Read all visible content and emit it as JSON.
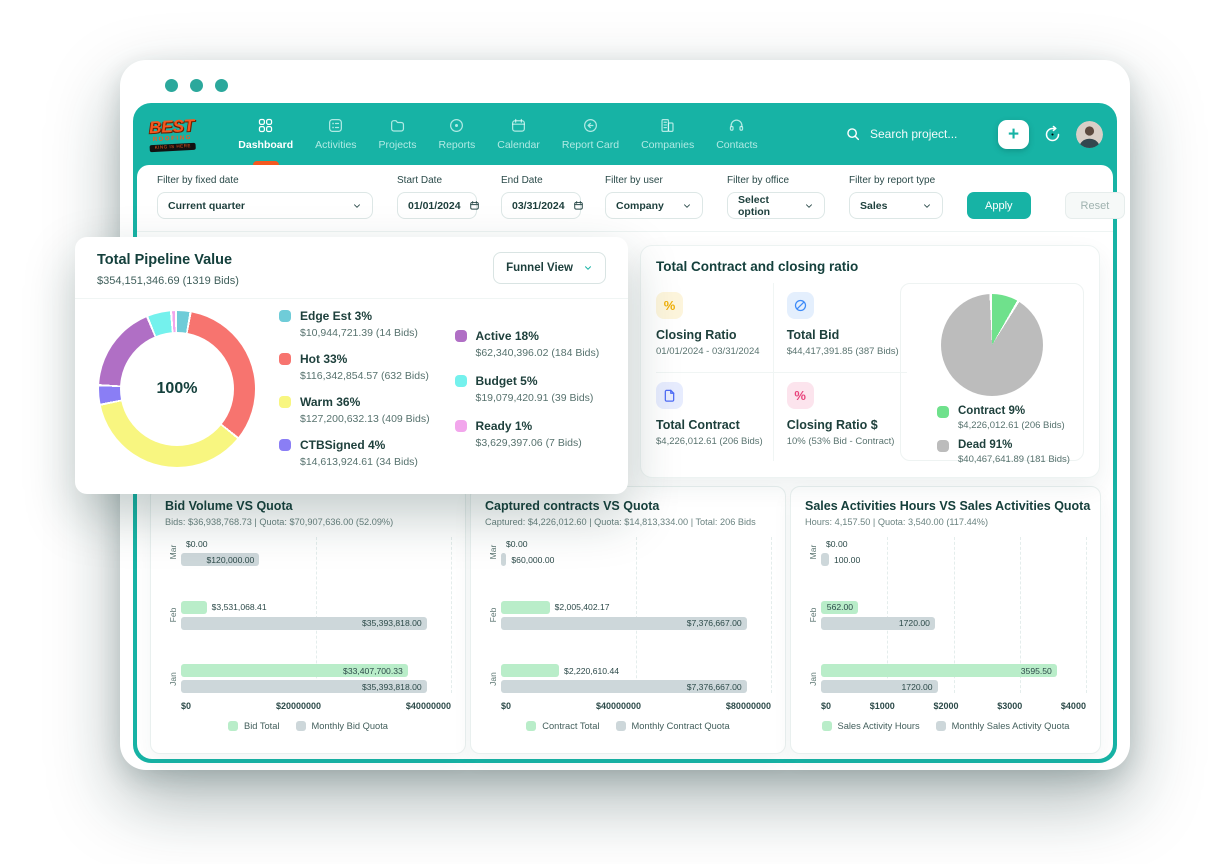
{
  "window": {
    "search_placeholder": "Search project...",
    "plus_label": "+"
  },
  "brand": {
    "line1": "BEST",
    "line2": "ROOFING",
    "line3": "KING IS HERE"
  },
  "nav": {
    "items": [
      {
        "label": "Dashboard",
        "icon": "grid",
        "active": true
      },
      {
        "label": "Activities",
        "icon": "activity",
        "active": false
      },
      {
        "label": "Projects",
        "icon": "folder",
        "active": false
      },
      {
        "label": "Reports",
        "icon": "target",
        "active": false
      },
      {
        "label": "Calendar",
        "icon": "calendar",
        "active": false
      },
      {
        "label": "Report Card",
        "icon": "badge",
        "active": false
      },
      {
        "label": "Companies",
        "icon": "building",
        "active": false
      },
      {
        "label": "Contacts",
        "icon": "headset",
        "active": false
      }
    ]
  },
  "filters": {
    "fixed_date": {
      "label": "Filter by fixed date",
      "value": "Current quarter"
    },
    "start_date": {
      "label": "Start Date",
      "value": "01/01/2024"
    },
    "end_date": {
      "label": "End Date",
      "value": "03/31/2024"
    },
    "user": {
      "label": "Filter by user",
      "value": "Company"
    },
    "office": {
      "label": "Filter by office",
      "value": "Select option"
    },
    "report_type": {
      "label": "Filter by report type",
      "value": "Sales"
    },
    "apply_label": "Apply",
    "reset_label": "Reset"
  },
  "pipeline_card": {
    "title": "Total Pipeline Value",
    "subtitle": "$354,151,346.69 (1319 Bids)",
    "view_option": "Funnel View"
  },
  "contract_card": {
    "title": "Total Contract and closing ratio",
    "stats": [
      {
        "icon": "percent",
        "color": "#efb008",
        "bg": "#fdf5dc",
        "label": "Closing Ratio",
        "value": "01/01/2024 - 03/31/2024"
      },
      {
        "icon": "slash-circle",
        "color": "#3d8bf8",
        "bg": "#e4effd",
        "label": "Total Bid",
        "value": "$44,417,391.85 (387 Bids)"
      },
      {
        "icon": "file",
        "color": "#4d6bf6",
        "bg": "#e7ecfe",
        "label": "Total Contract",
        "value": "$4,226,012.61 (206 Bids)"
      },
      {
        "icon": "percent",
        "color": "#e8447c",
        "bg": "#fce4ed",
        "label": "Closing Ratio $",
        "value": "10% (53% Bid - Contract)"
      }
    ]
  },
  "chart_data": [
    {
      "id": "pipeline-donut",
      "type": "pie",
      "variant": "donut",
      "title": "Total Pipeline Value",
      "center_label": "100%",
      "legend_split": 4,
      "slices": [
        {
          "label": "Edge Est 3%",
          "pct": 3,
          "value": "$10,944,721.39 (14 Bids)",
          "color": "#6fccd8"
        },
        {
          "label": "Hot 33%",
          "pct": 33,
          "value": "$116,342,854.57 (632 Bids)",
          "color": "#f7746f"
        },
        {
          "label": "Warm 36%",
          "pct": 36,
          "value": "$127,200,632.13 (409 Bids)",
          "color": "#f8f680"
        },
        {
          "label": "CTBSigned 4%",
          "pct": 4,
          "value": "$14,613,924.61 (34 Bids)",
          "color": "#8a7ef5"
        },
        {
          "label": "Active 18%",
          "pct": 18,
          "value": "$62,340,396.02 (184 Bids)",
          "color": "#b06fc5"
        },
        {
          "label": "Budget 5%",
          "pct": 5,
          "value": "$19,079,420.91 (39 Bids)",
          "color": "#74f1ed"
        },
        {
          "label": "Ready 1%",
          "pct": 1,
          "value": "$3,629,397.06 (7 Bids)",
          "color": "#f2a6ec"
        }
      ]
    },
    {
      "id": "contract-pie",
      "type": "pie",
      "title": "Total Contract and closing ratio",
      "slices": [
        {
          "label": "Contract 9%",
          "pct": 9,
          "value": "$4,226,012.61 (206 Bids)",
          "color": "#6fe18c"
        },
        {
          "label": "Dead 91%",
          "pct": 91,
          "value": "$40,467,641.89 (181 Bids)",
          "color": "#bcbcbc"
        }
      ]
    },
    {
      "id": "bid-volume",
      "type": "bar",
      "orientation": "horizontal",
      "title": "Bid Volume VS Quota",
      "subtitle": "Bids: $36,938,768.73 | Quota: $70,907,636.00 (52.09%)",
      "categories": [
        "Mar",
        "Feb",
        "Jan"
      ],
      "xmax": 40000000,
      "ticks": [
        "$0",
        "$20000000",
        "$40000000"
      ],
      "series": [
        {
          "name": "Bid Total",
          "color": "#b9edc9",
          "values": [
            0,
            3531068.41,
            33407700.33
          ],
          "labels": [
            "$0.00",
            "$3,531,068.41",
            "$33,407,700.33"
          ],
          "widths": [
            0,
            9.5,
            84
          ],
          "inside": [
            false,
            false,
            true
          ]
        },
        {
          "name": "Monthly Bid Quota",
          "color": "#cdd7da",
          "values": [
            120000,
            35393818,
            35393818
          ],
          "labels": [
            "$120,000.00",
            "$35,393,818.00",
            "$35,393,818.00"
          ],
          "widths": [
            29,
            91,
            91
          ],
          "inside": [
            true,
            true,
            true
          ]
        }
      ]
    },
    {
      "id": "captured-contracts",
      "type": "bar",
      "orientation": "horizontal",
      "title": "Captured contracts VS Quota",
      "subtitle": "Captured: $4,226,012.60 | Quota: $14,813,334.00 | Total: 206 Bids",
      "categories": [
        "Mar",
        "Feb",
        "Jan"
      ],
      "xmax": 80000000,
      "ticks": [
        "$0",
        "$40000000",
        "$80000000"
      ],
      "series": [
        {
          "name": "Contract Total",
          "color": "#b9edc9",
          "values": [
            0,
            2005402.17,
            2220610.44
          ],
          "labels": [
            "$0.00",
            "$2,005,402.17",
            "$2,220,610.44"
          ],
          "widths": [
            0,
            18,
            21.5
          ],
          "inside": [
            false,
            false,
            false
          ]
        },
        {
          "name": "Monthly Contract Quota",
          "color": "#cdd7da",
          "values": [
            60000,
            7376667,
            7376667
          ],
          "labels": [
            "$60,000.00",
            "$7,376,667.00",
            "$7,376,667.00"
          ],
          "widths": [
            2,
            91,
            91
          ],
          "inside": [
            false,
            true,
            true
          ]
        }
      ]
    },
    {
      "id": "sales-activities",
      "type": "bar",
      "orientation": "horizontal",
      "title": "Sales Activities Hours VS Sales Activities Quota",
      "subtitle": "Hours: 4,157.50 | Quota: 3,540.00 (117.44%)",
      "categories": [
        "Mar",
        "Feb",
        "Jan"
      ],
      "xmax": 4000,
      "ticks": [
        "$0",
        "$1000",
        "$2000",
        "$3000",
        "$4000"
      ],
      "series": [
        {
          "name": "Sales Activity Hours",
          "color": "#b9edc9",
          "values": [
            0,
            562,
            3595.5
          ],
          "labels": [
            "$0.00",
            "562.00",
            "3595.50"
          ],
          "widths": [
            0,
            14,
            89
          ],
          "inside": [
            false,
            true,
            true
          ]
        },
        {
          "name": "Monthly Sales Activity Quota",
          "color": "#cdd7da",
          "values": [
            100,
            1720,
            1720
          ],
          "labels": [
            "100.00",
            "1720.00",
            "1720.00"
          ],
          "widths": [
            3,
            43,
            44
          ],
          "inside": [
            false,
            true,
            true
          ]
        }
      ]
    }
  ],
  "colors": {
    "accent_teal": "#17b3a5",
    "accent_orange": "#f4581f",
    "bar_green": "#b9edc9",
    "bar_gray": "#cdd7da"
  }
}
